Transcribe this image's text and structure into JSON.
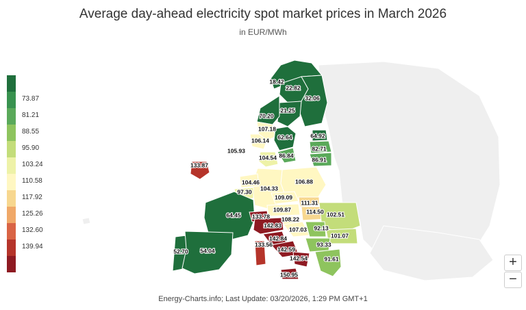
{
  "title": "Average day-ahead electricity spot market prices in March 2026",
  "subtitle": "in EUR/MWh",
  "footer": "Energy-Charts.info; Last Update: 03/20/2026, 1:29 PM GMT+1",
  "zoom": {
    "in_label": "+",
    "out_label": "−"
  },
  "legend": {
    "labels": [
      "73.87",
      "81.21",
      "88.55",
      "95.90",
      "103.24",
      "110.58",
      "117.92",
      "125.26",
      "132.60",
      "139.94"
    ],
    "colors": [
      "#1f6f3c",
      "#38924f",
      "#5aa95a",
      "#8ec45e",
      "#c3dd7a",
      "#eef2a8",
      "#fff7c2",
      "#f7d78f",
      "#f0a868",
      "#d96445",
      "#b5342a",
      "#8e1a22"
    ]
  },
  "regions": [
    {
      "id": "no4",
      "label": "18.42",
      "value": 18.42,
      "color": "#1f6f3c"
    },
    {
      "id": "se1",
      "label": "22.82",
      "value": 22.82,
      "color": "#1f6f3c"
    },
    {
      "id": "fi",
      "label": "32.06",
      "value": 32.06,
      "color": "#1f6f3c"
    },
    {
      "id": "se2",
      "label": "21.25",
      "value": 21.25,
      "color": "#1f6f3c"
    },
    {
      "id": "no3",
      "label": "70.20",
      "value": 70.2,
      "color": "#1f6f3c"
    },
    {
      "id": "no1",
      "label": "107.18",
      "value": 107.18,
      "color": "#fff7c2"
    },
    {
      "id": "no2",
      "label": "106.14",
      "value": 106.14,
      "color": "#fff7c2"
    },
    {
      "id": "se3",
      "label": "62.64",
      "value": 62.64,
      "color": "#1f6f3c"
    },
    {
      "id": "ee",
      "label": "64.92",
      "value": 64.92,
      "color": "#1f6f3c"
    },
    {
      "id": "lv",
      "label": "82.71",
      "value": 82.71,
      "color": "#5aa95a"
    },
    {
      "id": "se4",
      "label": "86.84",
      "value": 86.84,
      "color": "#5aa95a"
    },
    {
      "id": "lt",
      "label": "86.91",
      "value": 86.91,
      "color": "#5aa95a"
    },
    {
      "id": "gb",
      "label": "105.93",
      "value": 105.93,
      "color": "#f3f3f3"
    },
    {
      "id": "dk",
      "label": "104.54",
      "value": 104.54,
      "color": "#eef2a8"
    },
    {
      "id": "ie",
      "label": "133.87",
      "value": 133.87,
      "color": "#b5342a"
    },
    {
      "id": "nl",
      "label": "104.46",
      "value": 104.46,
      "color": "#fff7c2"
    },
    {
      "id": "de",
      "label": "104.33",
      "value": 104.33,
      "color": "#fff7c2"
    },
    {
      "id": "pl",
      "label": "106.88",
      "value": 106.88,
      "color": "#fff7c2"
    },
    {
      "id": "be",
      "label": "97.30",
      "value": 97.3,
      "color": "#eef2a8"
    },
    {
      "id": "cz",
      "label": "109.09",
      "value": 109.09,
      "color": "#fff7c2"
    },
    {
      "id": "sk",
      "label": "111.31",
      "value": 111.31,
      "color": "#f7d78f"
    },
    {
      "id": "at",
      "label": "109.87",
      "value": 109.87,
      "color": "#fff7c2"
    },
    {
      "id": "hu",
      "label": "114.50",
      "value": 114.5,
      "color": "#f7d78f"
    },
    {
      "id": "ro",
      "label": "102.51",
      "value": 102.51,
      "color": "#c3dd7a"
    },
    {
      "id": "fr",
      "label": "64.45",
      "value": 64.45,
      "color": "#1f6f3c"
    },
    {
      "id": "ch",
      "label": "133.78",
      "value": 133.78,
      "color": "#8e1a22"
    },
    {
      "id": "it_n",
      "label": "142.83",
      "value": 142.83,
      "color": "#8e1a22"
    },
    {
      "id": "si",
      "label": "108.22",
      "value": 108.22,
      "color": "#fff7c2"
    },
    {
      "id": "hr",
      "label": "107.03",
      "value": 107.03,
      "color": "#fff7c2"
    },
    {
      "id": "rs",
      "label": "92.13",
      "value": 92.13,
      "color": "#8ec45e"
    },
    {
      "id": "bg",
      "label": "101.07",
      "value": 101.07,
      "color": "#c3dd7a"
    },
    {
      "id": "it_cn",
      "label": "142.84",
      "value": 142.84,
      "color": "#8e1a22"
    },
    {
      "id": "me",
      "label": "93.33",
      "value": 93.33,
      "color": "#8ec45e"
    },
    {
      "id": "it_cs",
      "label": "142.59",
      "value": 142.59,
      "color": "#8e1a22"
    },
    {
      "id": "it_s",
      "label": "142.54",
      "value": 142.54,
      "color": "#8e1a22"
    },
    {
      "id": "it_sar",
      "label": "133.56",
      "value": 133.56,
      "color": "#b5342a"
    },
    {
      "id": "pt",
      "label": "52.70",
      "value": 52.7,
      "color": "#1f6f3c"
    },
    {
      "id": "es",
      "label": "54.04",
      "value": 54.04,
      "color": "#1f6f3c"
    },
    {
      "id": "gr",
      "label": "91.61",
      "value": 91.61,
      "color": "#8ec45e"
    },
    {
      "id": "it_sic",
      "label": "150.95",
      "value": 150.95,
      "color": "#8e1a22"
    }
  ]
}
